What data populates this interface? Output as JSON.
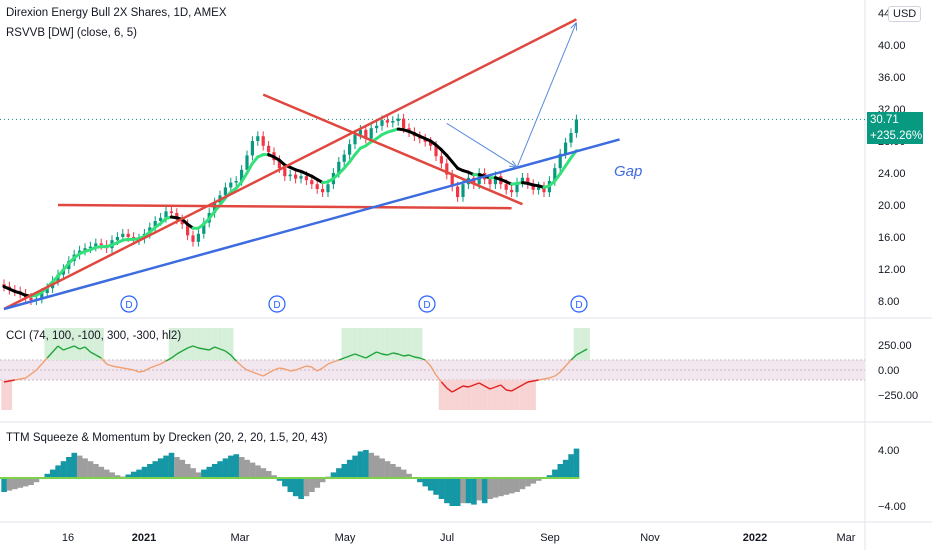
{
  "legend": {
    "main": "Direxion Energy Bull 2X Shares, 1D, AMEX",
    "ind1": "RSVVB [DW] (close, 6, 5)",
    "cci": "CCI (74, 100, -100, 300, -300, hl2)",
    "ttm": "TTM Squeeze & Momentum by Drecken (20, 2, 20, 1.5, 20, 43)"
  },
  "currency": "USD",
  "last_price": "30.71",
  "last_change": "+235.26%",
  "gap_label": "Gap",
  "dividend_marker": "D",
  "colors": {
    "up": "#089981",
    "down": "#f23645",
    "trend_red": "#e0483f",
    "trend_blue": "#3d6be0",
    "rsvvb_green": "#34e07a",
    "rsvvb_black": "#000000",
    "arrow": "#5b8bdc",
    "cci_green": "#1fa53a",
    "cci_orange": "#f0a070",
    "cci_red": "#e02020",
    "ttm_teal": "#1597a5",
    "ttm_gray": "#9e9e9e"
  },
  "chart_data": [
    {
      "type": "candlestick",
      "title": "Direxion Energy Bull 2X Shares, 1D, AMEX",
      "x_ticks": [
        "16",
        "2021",
        "Mar",
        "May",
        "Jul",
        "Sep",
        "Nov",
        "2022",
        "Mar"
      ],
      "y_ticks": [
        8,
        12,
        16,
        20,
        24,
        28,
        32,
        36,
        40,
        44
      ],
      "ylim": [
        5.5,
        44.5
      ],
      "close_series": [
        9.8,
        9.4,
        9.2,
        8.9,
        8.4,
        8.1,
        8.3,
        9.0,
        9.6,
        10.5,
        11.3,
        12.0,
        13.0,
        13.8,
        14.3,
        14.6,
        14.8,
        15.2,
        15.0,
        14.6,
        15.6,
        16.0,
        16.4,
        16.0,
        15.6,
        15.8,
        16.4,
        17.2,
        18.0,
        18.4,
        19.2,
        19.0,
        18.2,
        17.6,
        16.2,
        15.4,
        16.4,
        17.8,
        19.0,
        20.3,
        21.2,
        22.2,
        22.8,
        23.0,
        24.4,
        26.2,
        28.0,
        28.6,
        27.4,
        26.6,
        25.6,
        24.6,
        23.6,
        23.8,
        23.3,
        23.6,
        23.1,
        22.6,
        22.0,
        21.6,
        22.6,
        24.0,
        25.4,
        26.3,
        27.6,
        28.8,
        29.4,
        28.3,
        29.6,
        29.9,
        30.6,
        30.3,
        30.5,
        30.8,
        29.6,
        29.1,
        28.6,
        28.3,
        27.9,
        27.4,
        26.1,
        25.2,
        23.8,
        22.3,
        21.0,
        22.6,
        23.4,
        22.6,
        24.0,
        23.2,
        22.6,
        23.6,
        22.6,
        21.9,
        21.6,
        22.8,
        23.4,
        22.6,
        21.9,
        22.3,
        21.6,
        23.0,
        24.6,
        26.4,
        27.8,
        29.0,
        30.7
      ],
      "dividend_markers_x": [
        "Dec",
        "Mar",
        "Jun",
        "Sep"
      ],
      "annotations": [
        "Gap"
      ],
      "last_price": 30.71,
      "last_change_percent": 235.26,
      "overlays": [
        {
          "name": "RSVVB [DW] (close, 6, 5)",
          "values": [
            9.8,
            9.5,
            9.2,
            9.0,
            8.7,
            8.6,
            8.7,
            9.1,
            9.7,
            10.4,
            11.1,
            11.9,
            12.7,
            13.4,
            13.9,
            14.2,
            14.4,
            14.7,
            14.8,
            14.8,
            15.0,
            15.3,
            15.6,
            15.7,
            15.7,
            15.8,
            16.1,
            16.6,
            17.2,
            17.7,
            18.3,
            18.5,
            18.4,
            18.2,
            17.6,
            17.1,
            17.1,
            17.6,
            18.3,
            19.2,
            20.0,
            20.9,
            21.6,
            22.1,
            22.9,
            24.0,
            25.2,
            26.0,
            26.3,
            26.3,
            26.0,
            25.6,
            25.0,
            24.7,
            24.4,
            24.2,
            23.9,
            23.6,
            23.2,
            22.8,
            22.9,
            23.3,
            23.9,
            24.6,
            25.4,
            26.3,
            27.1,
            27.4,
            27.9,
            28.3,
            28.8,
            29.1,
            29.3,
            29.5,
            29.4,
            29.2,
            28.9,
            28.6,
            28.3,
            28.0,
            27.5,
            26.9,
            26.2,
            25.4,
            24.6,
            24.3,
            24.1,
            23.8,
            23.8,
            23.6,
            23.4,
            23.4,
            23.2,
            22.9,
            22.6,
            22.7,
            22.8,
            22.7,
            22.5,
            22.4,
            22.2,
            22.4,
            23.0,
            23.9,
            24.9,
            25.9,
            26.8
          ]
        }
      ],
      "trendlines": [
        {
          "color": "red",
          "from": [
            0.0,
            7.0
          ],
          "to": [
            53.0,
            43.2
          ]
        },
        {
          "color": "red",
          "from": [
            24.0,
            33.8
          ],
          "to": [
            48.0,
            20.1
          ]
        },
        {
          "color": "red",
          "from": [
            5.0,
            20.0
          ],
          "to": [
            47.0,
            19.6
          ]
        },
        {
          "color": "blue",
          "from": [
            0.0,
            7.0
          ],
          "to": [
            57.0,
            28.2
          ]
        }
      ],
      "projection_path": [
        [
          41.0,
          30.2
        ],
        [
          47.5,
          24.7
        ],
        [
          53.0,
          42.8
        ]
      ]
    },
    {
      "type": "line",
      "title": "CCI (74, 100, -100, 300, -300, hl2)",
      "y_ticks": [
        250,
        0,
        -250
      ],
      "ylim": [
        -330,
        330
      ],
      "bands": [
        100,
        -100
      ],
      "values": [
        -120,
        -110,
        -100,
        -90,
        -80,
        -40,
        0,
        60,
        120,
        180,
        240,
        200,
        220,
        240,
        210,
        230,
        180,
        150,
        120,
        60,
        40,
        30,
        20,
        10,
        0,
        -20,
        -10,
        20,
        40,
        60,
        90,
        120,
        160,
        190,
        220,
        240,
        220,
        210,
        200,
        230,
        210,
        190,
        150,
        90,
        40,
        0,
        -20,
        -40,
        -60,
        -30,
        0,
        20,
        10,
        -10,
        0,
        20,
        40,
        30,
        -10,
        20,
        60,
        80,
        100,
        120,
        140,
        160,
        140,
        120,
        150,
        180,
        160,
        150,
        170,
        160,
        140,
        150,
        130,
        120,
        100,
        40,
        -50,
        -120,
        -180,
        -220,
        -190,
        -160,
        -170,
        -150,
        -130,
        -160,
        -190,
        -170,
        -150,
        -200,
        -210,
        -180,
        -150,
        -120,
        -110,
        -100,
        -90,
        -80,
        -60,
        -20,
        40,
        100,
        150,
        180,
        210
      ]
    },
    {
      "type": "bar",
      "title": "TTM Squeeze & Momentum by Drecken (20, 2, 20, 1.5, 20, 43)",
      "y_ticks": [
        4,
        -4
      ],
      "ylim": [
        -5.5,
        5.5
      ],
      "values": [
        -2.0,
        -1.8,
        -1.6,
        -1.4,
        -1.2,
        -1.0,
        -0.6,
        0.0,
        0.6,
        1.2,
        1.8,
        2.4,
        3.0,
        3.6,
        3.2,
        2.8,
        2.4,
        2.0,
        1.6,
        1.2,
        0.8,
        0.4,
        0.2,
        0.5,
        0.9,
        1.2,
        1.6,
        2.0,
        2.4,
        2.8,
        3.2,
        3.6,
        3.0,
        2.6,
        2.0,
        1.4,
        0.8,
        1.2,
        1.6,
        2.0,
        2.4,
        2.8,
        3.2,
        3.4,
        3.0,
        2.6,
        2.2,
        1.8,
        1.4,
        1.0,
        0.4,
        -0.4,
        -1.2,
        -2.0,
        -2.6,
        -3.0,
        -2.6,
        -2.0,
        -1.4,
        -0.6,
        0.2,
        0.8,
        1.4,
        2.0,
        2.6,
        3.2,
        3.8,
        4.0,
        3.6,
        3.2,
        2.8,
        2.4,
        2.0,
        1.6,
        1.2,
        0.6,
        0.0,
        -0.6,
        -1.2,
        -1.8,
        -2.4,
        -3.0,
        -3.6,
        -4.0,
        -4.0,
        -3.6,
        -3.6,
        -3.8,
        -3.2,
        -3.6,
        -3.0,
        -2.8,
        -2.6,
        -2.4,
        -2.2,
        -2.0,
        -1.6,
        -1.2,
        -0.8,
        -0.4,
        0.0,
        0.4,
        1.2,
        2.0,
        2.6,
        3.4,
        4.2
      ]
    }
  ]
}
